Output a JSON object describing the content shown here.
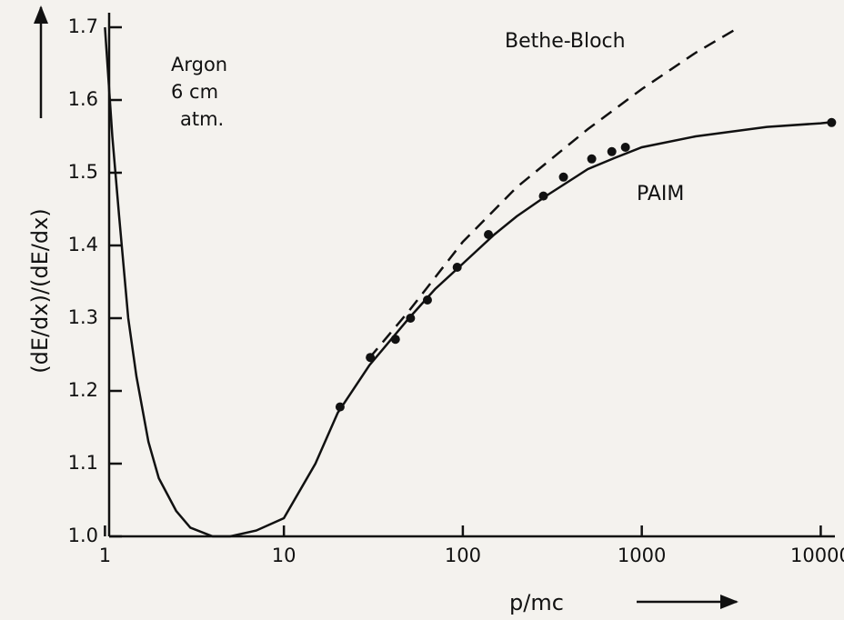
{
  "chart_data": {
    "type": "line",
    "xscale": "log",
    "xlabel": "p/mc",
    "ylabel": "(dE/dx)/(dE/dx)",
    "xlim": [
      0.95,
      12000
    ],
    "ylim": [
      1.0,
      1.72
    ],
    "xticks": [
      1,
      10,
      100,
      1000,
      10000
    ],
    "yticks": [
      {
        "value": 1.0,
        "label": "1.0"
      },
      1.1,
      1.2,
      1.3,
      1.4,
      1.5,
      1.6,
      1.7
    ],
    "color": "#111111",
    "annotations": [
      "Argon",
      "6 cm",
      "atm."
    ],
    "series": [
      {
        "name": "PAIM",
        "style": "solid",
        "x": [
          1.0,
          1.1,
          1.2,
          1.35,
          1.5,
          1.75,
          2,
          2.5,
          3,
          4,
          5,
          7,
          10,
          15,
          20,
          30,
          50,
          70,
          100,
          150,
          200,
          300,
          500,
          700,
          1000,
          2000,
          5000,
          10000,
          12000
        ],
        "values": [
          1.7,
          1.55,
          1.44,
          1.3,
          1.22,
          1.13,
          1.08,
          1.035,
          1.012,
          1.0,
          1.0,
          1.008,
          1.025,
          1.1,
          1.17,
          1.235,
          1.3,
          1.34,
          1.375,
          1.415,
          1.44,
          1.47,
          1.505,
          1.52,
          1.535,
          1.55,
          1.563,
          1.568,
          1.57
        ]
      },
      {
        "name": "Bethe-Bloch",
        "style": "dashed",
        "x": [
          30,
          50,
          100,
          200,
          500,
          1000,
          2000,
          3500
        ],
        "values": [
          1.245,
          1.31,
          1.405,
          1.48,
          1.56,
          1.615,
          1.665,
          1.7
        ]
      }
    ],
    "points": {
      "x": [
        20.6,
        30.4,
        42,
        51,
        63.4,
        93,
        139,
        282,
        365,
        525,
        680,
        810,
        11500
      ],
      "y": [
        1.178,
        1.246,
        1.271,
        1.3,
        1.325,
        1.37,
        1.415,
        1.468,
        1.494,
        1.519,
        1.529,
        1.535,
        1.569
      ]
    }
  }
}
